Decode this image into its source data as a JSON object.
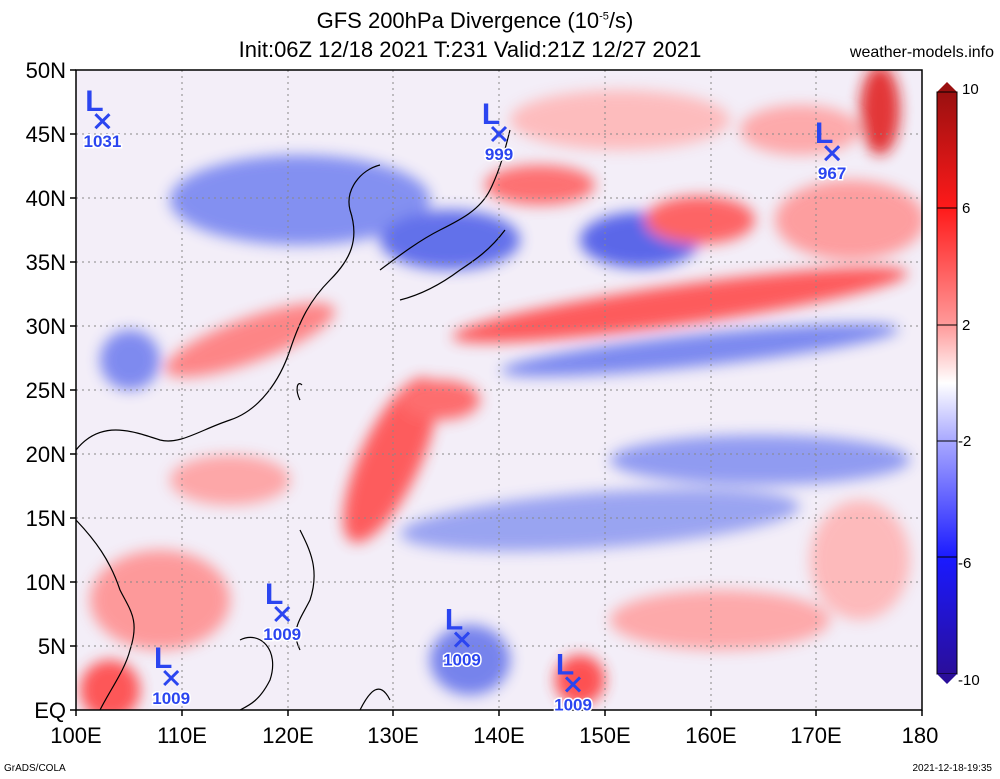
{
  "header": {
    "title_line1": "GFS 200hPa Divergence (10",
    "title_exp": "-5",
    "title_unit": "/s)",
    "title_line2": "Init:06Z 12/18 2021 T:231 Valid:21Z 12/27 2021",
    "site": "weather-models.info"
  },
  "footer": {
    "left": "GrADS/COLA",
    "right": "2021-12-18-19:35"
  },
  "map": {
    "lon_range": [
      100,
      180
    ],
    "lat_range": [
      0,
      50
    ],
    "lat_labels": [
      "50N",
      "45N",
      "40N",
      "35N",
      "30N",
      "25N",
      "20N",
      "15N",
      "10N",
      "5N",
      "EQ"
    ],
    "lon_labels": [
      "100E",
      "110E",
      "120E",
      "130E",
      "140E",
      "150E",
      "160E",
      "170E",
      "180"
    ],
    "grid": "dotted every 5 degrees",
    "lows": [
      {
        "letter": "L",
        "value": "1031",
        "lon": 102.5,
        "lat": 46
      },
      {
        "letter": "L",
        "value": "999",
        "lon": 140,
        "lat": 45
      },
      {
        "letter": "L",
        "value": "967",
        "lon": 171.5,
        "lat": 43.5
      },
      {
        "letter": "L",
        "value": "1009",
        "lon": 119.5,
        "lat": 7.5
      },
      {
        "letter": "L",
        "value": "1009",
        "lon": 136.5,
        "lat": 5.5
      },
      {
        "letter": "L",
        "value": "1009",
        "lon": 109,
        "lat": 2.5
      },
      {
        "letter": "L",
        "value": "1009",
        "lon": 147,
        "lat": 2
      }
    ],
    "marker_color": "#2b45f0"
  },
  "colorbar": {
    "labels": [
      "10",
      "6",
      "2",
      "-2",
      "-6",
      "-10"
    ],
    "range": [
      -10,
      10
    ],
    "colors": {
      "max": "#9a1010",
      "high": "#ff1a1a",
      "pos": "#ff9a9a",
      "zero": "#ffffff",
      "neg": "#a8a8ff",
      "low": "#1a1aff",
      "min": "#2a0e9a"
    }
  }
}
